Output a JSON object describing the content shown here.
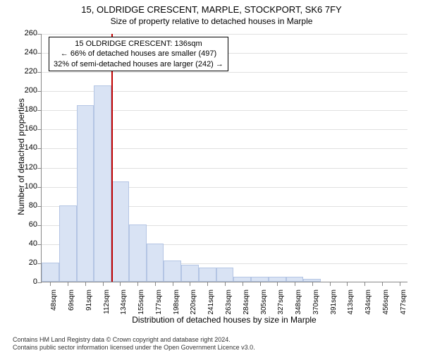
{
  "chart": {
    "type": "histogram",
    "title": "15, OLDRIDGE CRESCENT, MARPLE, STOCKPORT, SK6 7FY",
    "subtitle": "Size of property relative to detached houses in Marple",
    "ylabel": "Number of detached properties",
    "xlabel": "Distribution of detached houses by size in Marple",
    "categories": [
      "48sqm",
      "69sqm",
      "91sqm",
      "112sqm",
      "134sqm",
      "155sqm",
      "177sqm",
      "198sqm",
      "220sqm",
      "241sqm",
      "263sqm",
      "284sqm",
      "305sqm",
      "327sqm",
      "348sqm",
      "370sqm",
      "391sqm",
      "413sqm",
      "434sqm",
      "456sqm",
      "477sqm"
    ],
    "values": [
      20,
      80,
      185,
      205,
      105,
      60,
      40,
      22,
      18,
      15,
      15,
      5,
      5,
      5,
      5,
      3,
      0,
      0,
      0,
      0,
      0
    ],
    "ylim": [
      0,
      260
    ],
    "ytick_step": 20,
    "bar_fill": "#d9e3f4",
    "bar_stroke": "#b4c5e4",
    "grid_color": "#e0e0e0",
    "axis_color": "#888888",
    "background_color": "#ffffff",
    "marker_color": "#c00000",
    "marker_position_index": 4,
    "info_box": {
      "line1": "15 OLDRIDGE CRESCENT: 136sqm",
      "line2": "← 66% of detached houses are smaller (497)",
      "line3": "32% of semi-detached houses are larger (242) →"
    },
    "title_fontsize": 13,
    "subtitle_fontsize": 12,
    "axis_label_fontsize": 12,
    "tick_fontsize": 11,
    "xtick_fontsize": 10,
    "info_fontsize": 11,
    "footer_fontsize": 9
  },
  "footer": {
    "line1": "Contains HM Land Registry data © Crown copyright and database right 2024.",
    "line2": "Contains public sector information licensed under the Open Government Licence v3.0."
  }
}
